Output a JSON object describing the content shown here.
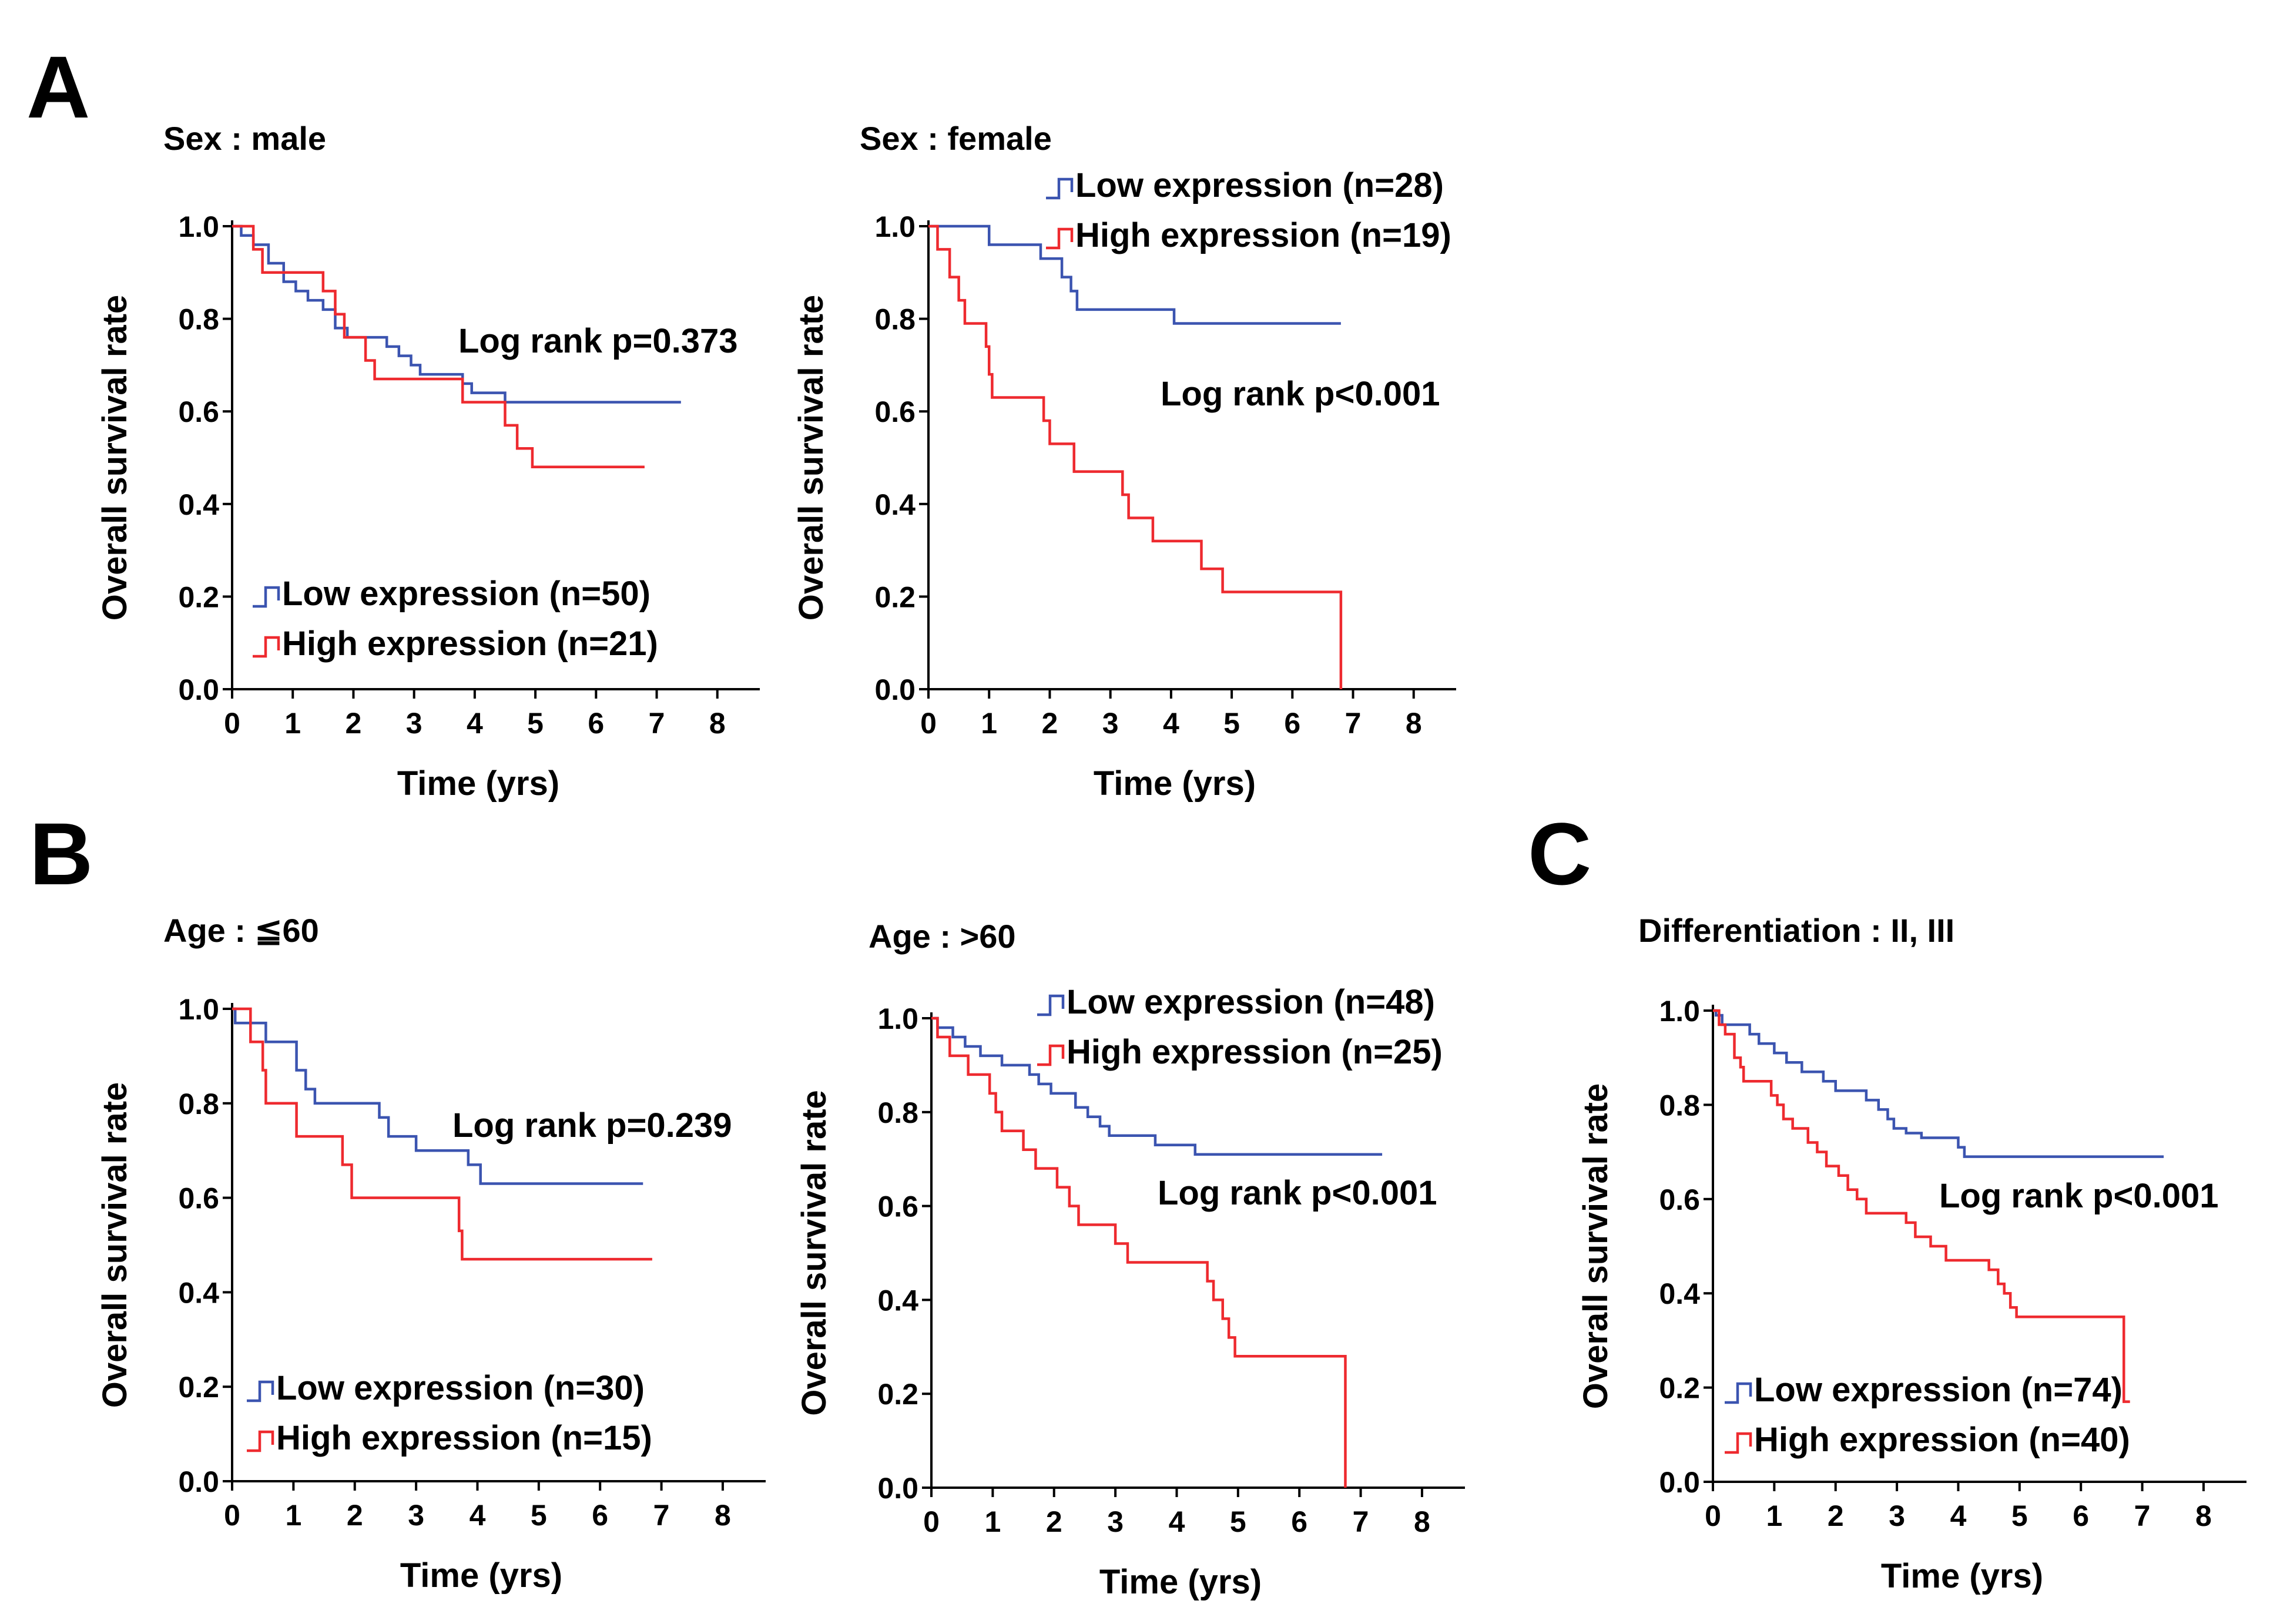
{
  "figure": {
    "panel_letters": [
      "A",
      "B",
      "C"
    ],
    "colors": {
      "low": "#3b54b0",
      "high": "#ee2a2f"
    }
  },
  "chart_data": [
    {
      "id": "A-male",
      "type": "line",
      "title": "Sex : male",
      "xlabel": "Time (yrs)",
      "ylabel": "Overall survival rate",
      "xlim": [
        0,
        8.7
      ],
      "ylim": [
        0,
        1.0
      ],
      "xticks": [
        "0",
        "1",
        "2",
        "3",
        "4",
        "5",
        "6",
        "7",
        "8"
      ],
      "yticks": [
        "0.0",
        "0.2",
        "0.4",
        "0.6",
        "0.8",
        "1.0"
      ],
      "annotation": "Log rank p=0.373",
      "legend": [
        "Low expression (n=50)",
        "High expression (n=21)"
      ],
      "series": [
        {
          "name": "Low expression (n=50)",
          "color": "#3b54b0",
          "end": 7.4,
          "steps": [
            [
              0,
              1.0
            ],
            [
              0.15,
              0.98
            ],
            [
              0.35,
              0.96
            ],
            [
              0.6,
              0.92
            ],
            [
              0.85,
              0.88
            ],
            [
              1.05,
              0.86
            ],
            [
              1.25,
              0.84
            ],
            [
              1.5,
              0.82
            ],
            [
              1.7,
              0.78
            ],
            [
              1.9,
              0.76
            ],
            [
              2.55,
              0.74
            ],
            [
              2.75,
              0.72
            ],
            [
              2.95,
              0.7
            ],
            [
              3.1,
              0.68
            ],
            [
              3.8,
              0.66
            ],
            [
              3.95,
              0.64
            ],
            [
              4.5,
              0.62
            ]
          ]
        },
        {
          "name": "High expression (n=21)",
          "color": "#ee2a2f",
          "end": 6.8,
          "steps": [
            [
              0,
              1.0
            ],
            [
              0.35,
              0.95
            ],
            [
              0.5,
              0.9
            ],
            [
              1.5,
              0.86
            ],
            [
              1.7,
              0.81
            ],
            [
              1.85,
              0.76
            ],
            [
              2.2,
              0.71
            ],
            [
              2.35,
              0.67
            ],
            [
              3.8,
              0.62
            ],
            [
              4.5,
              0.57
            ],
            [
              4.7,
              0.52
            ],
            [
              4.95,
              0.48
            ]
          ]
        }
      ]
    },
    {
      "id": "A-female",
      "type": "line",
      "title": "Sex : female",
      "xlabel": "Time (yrs)",
      "ylabel": "Overall survival rate",
      "xlim": [
        0,
        8.7
      ],
      "ylim": [
        0,
        1.0
      ],
      "xticks": [
        "0",
        "1",
        "2",
        "3",
        "4",
        "5",
        "6",
        "7",
        "8"
      ],
      "yticks": [
        "0.0",
        "0.2",
        "0.4",
        "0.6",
        "0.8",
        "1.0"
      ],
      "annotation": "Log rank p<0.001",
      "legend": [
        "Low expression (n=28)",
        "High expression (n=19)"
      ],
      "series": [
        {
          "name": "Low expression (n=28)",
          "color": "#3b54b0",
          "end": 6.8,
          "steps": [
            [
              0,
              1.0
            ],
            [
              1.0,
              0.96
            ],
            [
              1.85,
              0.93
            ],
            [
              2.2,
              0.89
            ],
            [
              2.35,
              0.86
            ],
            [
              2.45,
              0.82
            ],
            [
              4.05,
              0.79
            ]
          ]
        },
        {
          "name": "High expression (n=19)",
          "color": "#ee2a2f",
          "end": 6.8,
          "steps": [
            [
              0,
              1.0
            ],
            [
              0.15,
              0.95
            ],
            [
              0.35,
              0.89
            ],
            [
              0.5,
              0.84
            ],
            [
              0.6,
              0.79
            ],
            [
              0.95,
              0.74
            ],
            [
              1.0,
              0.68
            ],
            [
              1.05,
              0.63
            ],
            [
              1.9,
              0.58
            ],
            [
              2.0,
              0.53
            ],
            [
              2.4,
              0.47
            ],
            [
              3.2,
              0.42
            ],
            [
              3.3,
              0.37
            ],
            [
              3.7,
              0.32
            ],
            [
              4.5,
              0.26
            ],
            [
              4.85,
              0.21
            ],
            [
              6.8,
              0.0
            ]
          ]
        }
      ]
    },
    {
      "id": "B-age-le60",
      "type": "line",
      "title": "Age : ≦60",
      "xlabel": "Time (yrs)",
      "ylabel": "Overall survival rate",
      "xlim": [
        0,
        8.7
      ],
      "ylim": [
        0,
        1.0
      ],
      "xticks": [
        "0",
        "1",
        "2",
        "3",
        "4",
        "5",
        "6",
        "7",
        "8"
      ],
      "yticks": [
        "0.0",
        "0.2",
        "0.4",
        "0.6",
        "0.8",
        "1.0"
      ],
      "annotation": "Log rank p=0.239",
      "legend": [
        "Low expression (n=30)",
        "High expression (n=15)"
      ],
      "series": [
        {
          "name": "Low expression (n=30)",
          "color": "#3b54b0",
          "end": 6.7,
          "steps": [
            [
              0,
              1.0
            ],
            [
              0.05,
              0.97
            ],
            [
              0.55,
              0.93
            ],
            [
              1.05,
              0.87
            ],
            [
              1.2,
              0.83
            ],
            [
              1.35,
              0.8
            ],
            [
              2.4,
              0.77
            ],
            [
              2.55,
              0.73
            ],
            [
              3.0,
              0.7
            ],
            [
              3.85,
              0.67
            ],
            [
              4.05,
              0.63
            ]
          ]
        },
        {
          "name": "High expression (n=15)",
          "color": "#ee2a2f",
          "end": 6.85,
          "steps": [
            [
              0,
              1.0
            ],
            [
              0.3,
              0.93
            ],
            [
              0.5,
              0.87
            ],
            [
              0.55,
              0.8
            ],
            [
              1.05,
              0.73
            ],
            [
              1.8,
              0.67
            ],
            [
              1.95,
              0.6
            ],
            [
              3.7,
              0.53
            ],
            [
              3.75,
              0.47
            ]
          ]
        }
      ]
    },
    {
      "id": "B-age-gt60",
      "type": "line",
      "title": "Age : >60",
      "xlabel": "Time (yrs)",
      "ylabel": "Overall survival rate",
      "xlim": [
        0,
        8.7
      ],
      "ylim": [
        0,
        1.0
      ],
      "xticks": [
        "0",
        "1",
        "2",
        "3",
        "4",
        "5",
        "6",
        "7",
        "8"
      ],
      "yticks": [
        "0.0",
        "0.2",
        "0.4",
        "0.6",
        "0.8",
        "1.0"
      ],
      "annotation": "Log rank p<0.001",
      "legend": [
        "Low expression (n=48)",
        "High expression (n=25)"
      ],
      "series": [
        {
          "name": "Low expression (n=48)",
          "color": "#3b54b0",
          "end": 7.35,
          "steps": [
            [
              0,
              1.0
            ],
            [
              0.1,
              0.98
            ],
            [
              0.35,
              0.96
            ],
            [
              0.55,
              0.94
            ],
            [
              0.8,
              0.92
            ],
            [
              1.15,
              0.9
            ],
            [
              1.6,
              0.88
            ],
            [
              1.75,
              0.86
            ],
            [
              1.95,
              0.84
            ],
            [
              2.35,
              0.81
            ],
            [
              2.55,
              0.79
            ],
            [
              2.75,
              0.77
            ],
            [
              2.9,
              0.75
            ],
            [
              3.65,
              0.73
            ],
            [
              4.3,
              0.71
            ]
          ]
        },
        {
          "name": "High expression (n=25)",
          "color": "#ee2a2f",
          "end": 6.75,
          "steps": [
            [
              0,
              1.0
            ],
            [
              0.1,
              0.96
            ],
            [
              0.3,
              0.92
            ],
            [
              0.6,
              0.88
            ],
            [
              0.95,
              0.84
            ],
            [
              1.05,
              0.8
            ],
            [
              1.15,
              0.76
            ],
            [
              1.5,
              0.72
            ],
            [
              1.7,
              0.68
            ],
            [
              2.05,
              0.64
            ],
            [
              2.25,
              0.6
            ],
            [
              2.4,
              0.56
            ],
            [
              3.0,
              0.52
            ],
            [
              3.2,
              0.48
            ],
            [
              4.5,
              0.44
            ],
            [
              4.6,
              0.4
            ],
            [
              4.75,
              0.36
            ],
            [
              4.85,
              0.32
            ],
            [
              4.95,
              0.28
            ],
            [
              6.75,
              0.0
            ]
          ]
        }
      ]
    },
    {
      "id": "C-differentiation",
      "type": "line",
      "title": "Differentiation : II, III",
      "xlabel": "Time (yrs)",
      "ylabel": "Overall survival rate",
      "xlim": [
        0,
        8.7
      ],
      "ylim": [
        0,
        1.0
      ],
      "xticks": [
        "0",
        "1",
        "2",
        "3",
        "4",
        "5",
        "6",
        "7",
        "8"
      ],
      "yticks": [
        "0.0",
        "0.2",
        "0.4",
        "0.6",
        "0.8",
        "1.0"
      ],
      "annotation": "Log rank p<0.001",
      "legend": [
        "Low expression (n=74)",
        "High expression (n=40)"
      ],
      "series": [
        {
          "name": "Low expression (n=74)",
          "color": "#3b54b0",
          "end": 7.35,
          "steps": [
            [
              0,
              1.0
            ],
            [
              0.05,
              0.99
            ],
            [
              0.15,
              0.97
            ],
            [
              0.6,
              0.95
            ],
            [
              0.75,
              0.93
            ],
            [
              1.0,
              0.91
            ],
            [
              1.2,
              0.89
            ],
            [
              1.45,
              0.87
            ],
            [
              1.8,
              0.85
            ],
            [
              2.0,
              0.83
            ],
            [
              2.5,
              0.81
            ],
            [
              2.7,
              0.79
            ],
            [
              2.85,
              0.77
            ],
            [
              2.95,
              0.75
            ],
            [
              3.15,
              0.74
            ],
            [
              3.4,
              0.73
            ],
            [
              4.0,
              0.71
            ],
            [
              4.1,
              0.69
            ]
          ]
        },
        {
          "name": "High expression (n=40)",
          "color": "#ee2a2f",
          "end": 6.8,
          "steps": [
            [
              0,
              1.0
            ],
            [
              0.1,
              0.97
            ],
            [
              0.2,
              0.95
            ],
            [
              0.35,
              0.9
            ],
            [
              0.45,
              0.88
            ],
            [
              0.5,
              0.85
            ],
            [
              0.95,
              0.82
            ],
            [
              1.05,
              0.8
            ],
            [
              1.15,
              0.77
            ],
            [
              1.3,
              0.75
            ],
            [
              1.55,
              0.72
            ],
            [
              1.7,
              0.7
            ],
            [
              1.85,
              0.67
            ],
            [
              2.05,
              0.65
            ],
            [
              2.2,
              0.62
            ],
            [
              2.35,
              0.6
            ],
            [
              2.5,
              0.57
            ],
            [
              3.15,
              0.55
            ],
            [
              3.3,
              0.52
            ],
            [
              3.55,
              0.5
            ],
            [
              3.8,
              0.47
            ],
            [
              4.5,
              0.45
            ],
            [
              4.65,
              0.42
            ],
            [
              4.75,
              0.4
            ],
            [
              4.85,
              0.37
            ],
            [
              4.95,
              0.35
            ],
            [
              6.7,
              0.17
            ]
          ]
        }
      ]
    }
  ]
}
